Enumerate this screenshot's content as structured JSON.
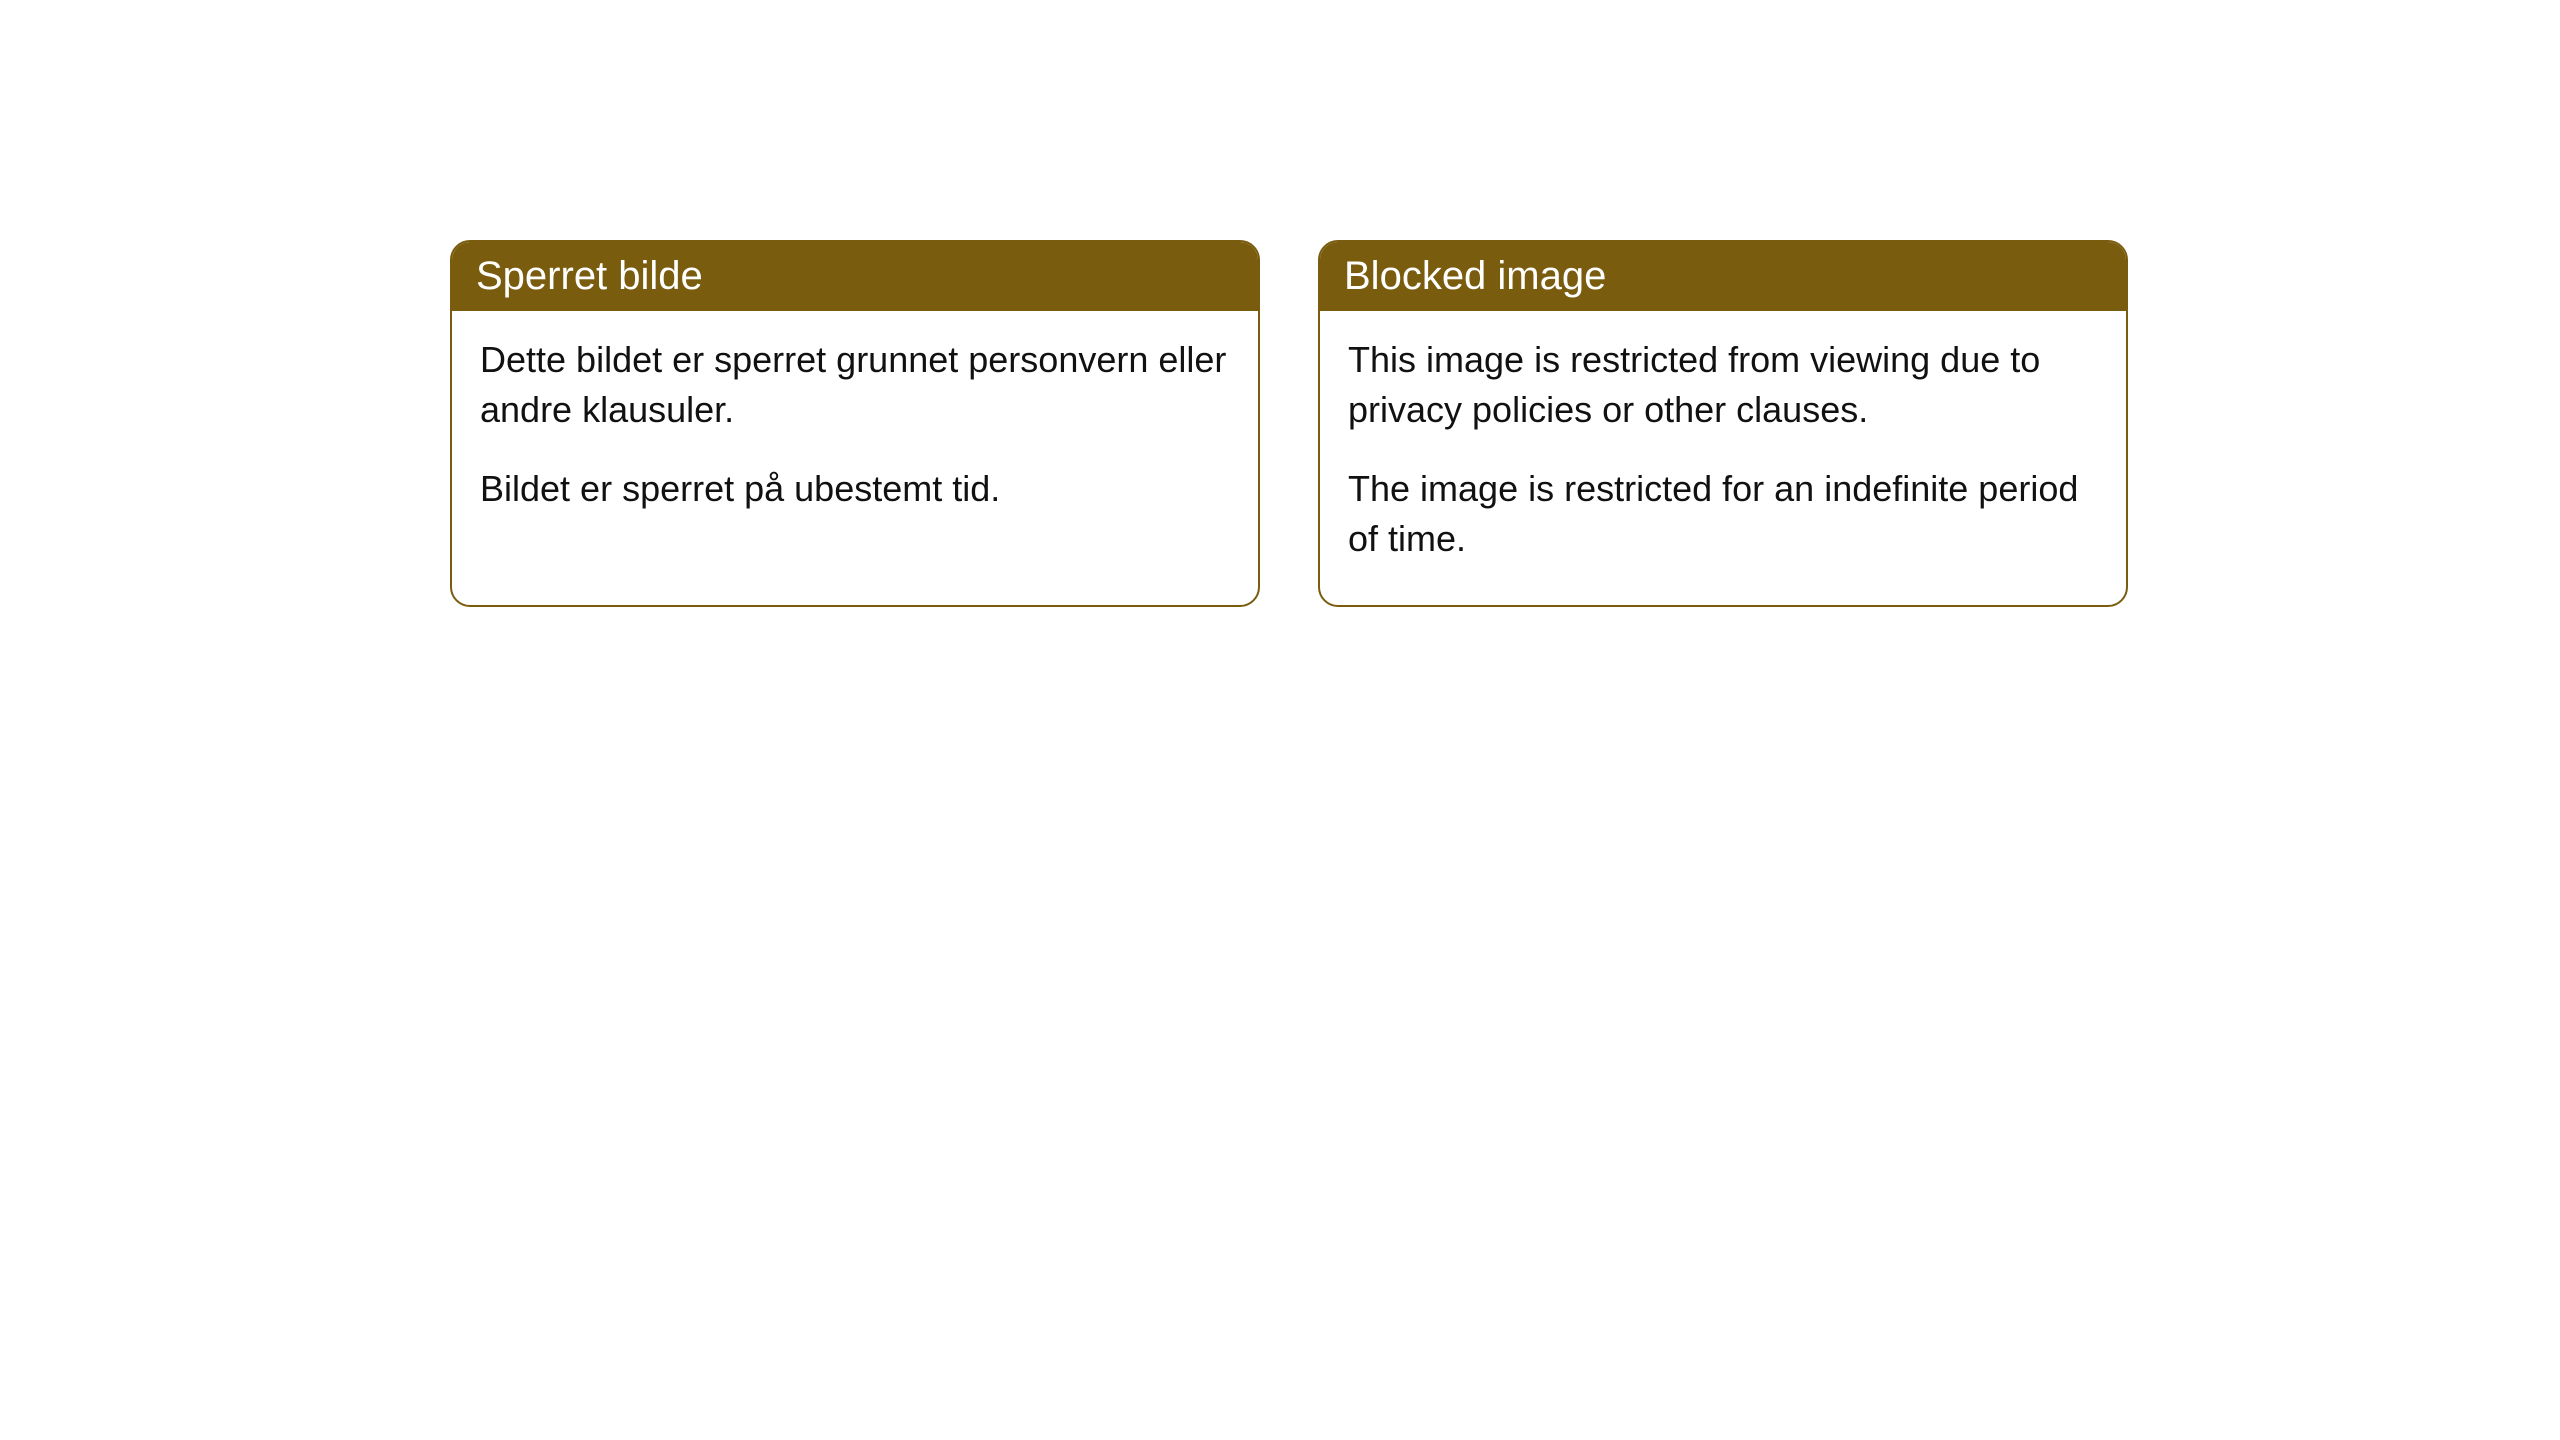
{
  "cards": {
    "left": {
      "title": "Sperret bilde",
      "paragraph1": "Dette bildet er sperret grunnet personvern eller andre klausuler.",
      "paragraph2": "Bildet er sperret på ubestemt tid."
    },
    "right": {
      "title": "Blocked image",
      "paragraph1": "This image is restricted from viewing due to privacy policies or other clauses.",
      "paragraph2": "The image is restricted for an indefinite period of time."
    }
  },
  "styling": {
    "header_bg_color": "#7a5c0e",
    "header_text_color": "#ffffff",
    "body_text_color": "#111111",
    "border_color": "#7a5c0e",
    "background_color": "#ffffff",
    "border_radius": 20,
    "header_fontsize": 40,
    "body_fontsize": 36
  }
}
